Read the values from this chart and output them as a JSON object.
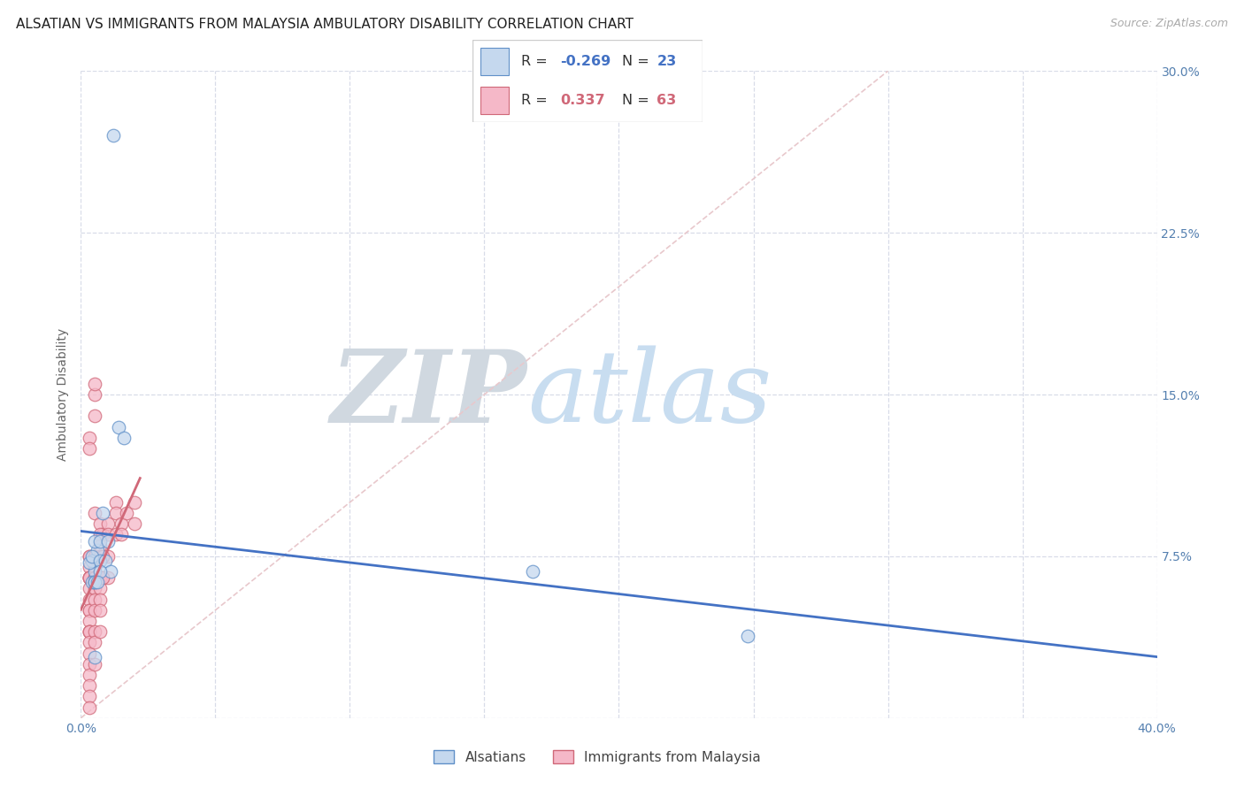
{
  "title": "ALSATIAN VS IMMIGRANTS FROM MALAYSIA AMBULATORY DISABILITY CORRELATION CHART",
  "source": "Source: ZipAtlas.com",
  "ylabel": "Ambulatory Disability",
  "xlim": [
    0.0,
    0.4
  ],
  "ylim": [
    0.0,
    0.3
  ],
  "blue_R": -0.269,
  "blue_N": 23,
  "pink_R": 0.337,
  "pink_N": 63,
  "blue_fill": "#c5d8ee",
  "blue_edge": "#6090c8",
  "blue_line": "#4472c4",
  "pink_fill": "#f5b8c8",
  "pink_edge": "#d06878",
  "pink_line": "#d06878",
  "diag_color": "#e8c8cc",
  "grid_color": "#d8dce8",
  "wm_zip_color": "#d0d8e0",
  "wm_atlas_color": "#c8ddf0",
  "background": "#ffffff",
  "title_color": "#222222",
  "source_color": "#aaaaaa",
  "ylabel_color": "#666666",
  "tick_color": "#5580b0",
  "blue_x": [
    0.012,
    0.014,
    0.016,
    0.006,
    0.005,
    0.008,
    0.005,
    0.007,
    0.004,
    0.003,
    0.004,
    0.004,
    0.005,
    0.007,
    0.009,
    0.01,
    0.011,
    0.007,
    0.005,
    0.248,
    0.168,
    0.005,
    0.006
  ],
  "blue_y": [
    0.27,
    0.135,
    0.13,
    0.078,
    0.082,
    0.095,
    0.068,
    0.082,
    0.073,
    0.072,
    0.075,
    0.063,
    0.063,
    0.073,
    0.073,
    0.082,
    0.068,
    0.068,
    0.063,
    0.038,
    0.068,
    0.028,
    0.063
  ],
  "pink_x": [
    0.005,
    0.005,
    0.005,
    0.003,
    0.003,
    0.005,
    0.007,
    0.008,
    0.008,
    0.003,
    0.003,
    0.003,
    0.003,
    0.003,
    0.003,
    0.003,
    0.003,
    0.003,
    0.003,
    0.003,
    0.003,
    0.003,
    0.003,
    0.003,
    0.003,
    0.003,
    0.003,
    0.003,
    0.003,
    0.003,
    0.003,
    0.005,
    0.005,
    0.005,
    0.005,
    0.005,
    0.005,
    0.005,
    0.005,
    0.005,
    0.005,
    0.007,
    0.007,
    0.007,
    0.007,
    0.007,
    0.007,
    0.007,
    0.007,
    0.01,
    0.01,
    0.01,
    0.01,
    0.013,
    0.013,
    0.013,
    0.015,
    0.015,
    0.017,
    0.02,
    0.02,
    0.008,
    0.008
  ],
  "pink_y": [
    0.15,
    0.155,
    0.14,
    0.13,
    0.125,
    0.095,
    0.09,
    0.085,
    0.065,
    0.075,
    0.075,
    0.07,
    0.065,
    0.065,
    0.065,
    0.065,
    0.06,
    0.055,
    0.05,
    0.05,
    0.045,
    0.04,
    0.04,
    0.04,
    0.035,
    0.03,
    0.025,
    0.02,
    0.015,
    0.01,
    0.005,
    0.075,
    0.07,
    0.065,
    0.065,
    0.06,
    0.055,
    0.05,
    0.04,
    0.035,
    0.025,
    0.085,
    0.08,
    0.075,
    0.065,
    0.06,
    0.055,
    0.05,
    0.04,
    0.09,
    0.085,
    0.075,
    0.065,
    0.1,
    0.095,
    0.085,
    0.09,
    0.085,
    0.095,
    0.1,
    0.09,
    0.075,
    0.065
  ],
  "blue_line_x0": 0.0,
  "blue_line_x1": 0.4,
  "pink_line_x0": 0.0,
  "pink_line_x1": 0.022
}
